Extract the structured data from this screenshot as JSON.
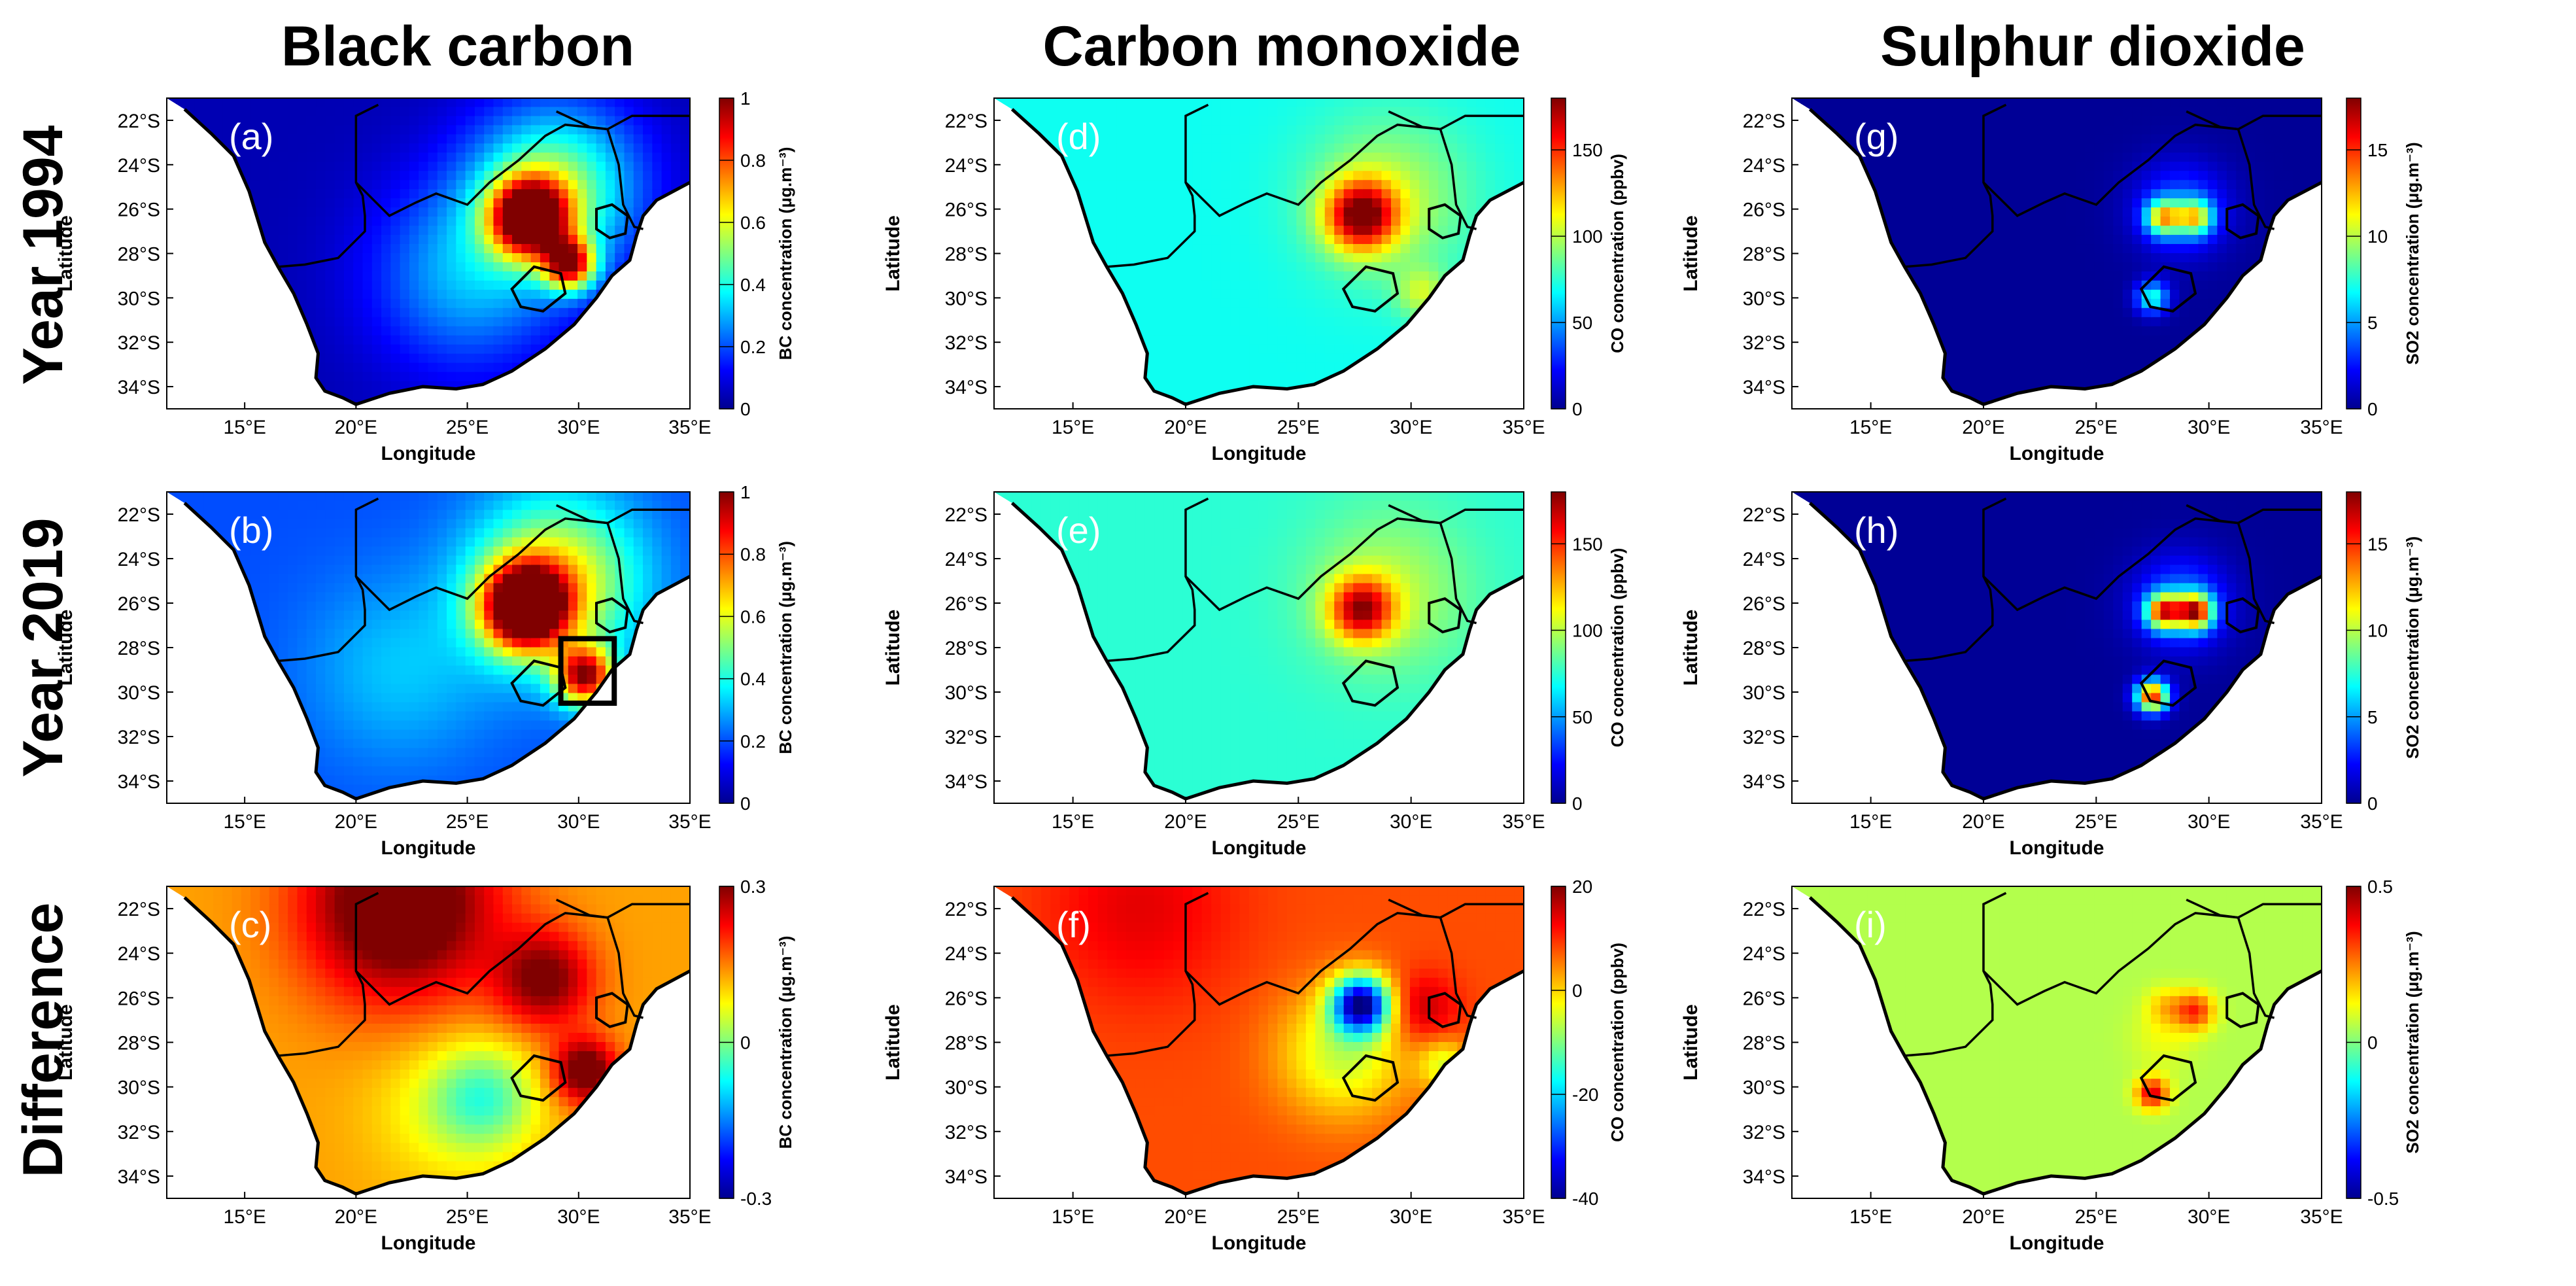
{
  "figure": {
    "column_titles": [
      "Black carbon",
      "Carbon monoxide",
      "Sulphur dioxide"
    ],
    "row_titles": [
      "Year 1994",
      "Year 2019",
      "Difference"
    ]
  },
  "chart_data": [
    {
      "type": "heatmap",
      "panel": "(a)",
      "pollutant": "BC",
      "row": "Year 1994",
      "xlabel": "Longitude",
      "ylabel": "Latitude",
      "x_ticks": [
        "15°E",
        "20°E",
        "25°E",
        "30°E",
        "35°E"
      ],
      "y_ticks": [
        "22°S",
        "24°S",
        "26°S",
        "28°S",
        "30°S",
        "32°S",
        "34°S"
      ],
      "xlim": [
        11.5,
        35
      ],
      "ylim": [
        -35,
        -21
      ],
      "colorbar": {
        "label": "BC concentration (μg.m⁻³)",
        "ticks": [
          "0",
          "0.2",
          "0.4",
          "0.6",
          "0.8",
          "1"
        ],
        "range": [
          0,
          1
        ],
        "scale": "jet"
      },
      "background": 0.05,
      "hotspots": [
        {
          "lon": 27.8,
          "lat": -26.4,
          "value": 0.9,
          "sigma": 1.2
        },
        {
          "lon": 29.6,
          "lat": -28.5,
          "value": 0.75,
          "sigma": 0.8
        },
        {
          "lon": 29,
          "lat": -25,
          "value": 0.45,
          "sigma": 2.6
        },
        {
          "lon": 25,
          "lat": -29,
          "value": 0.25,
          "sigma": 3
        }
      ]
    },
    {
      "type": "heatmap",
      "panel": "(b)",
      "pollutant": "BC",
      "row": "Year 2019",
      "xlabel": "Longitude",
      "ylabel": "Latitude",
      "x_ticks": [
        "15°E",
        "20°E",
        "25°E",
        "30°E",
        "35°E"
      ],
      "y_ticks": [
        "22°S",
        "24°S",
        "26°S",
        "28°S",
        "30°S",
        "32°S",
        "34°S"
      ],
      "xlim": [
        11.5,
        35
      ],
      "ylim": [
        -35,
        -21
      ],
      "colorbar": {
        "label": "BC concentration (μg.m⁻³)",
        "ticks": [
          "0",
          "0.2",
          "0.4",
          "0.6",
          "0.8",
          "1"
        ],
        "range": [
          0,
          1
        ],
        "scale": "jet"
      },
      "background": 0.2,
      "hotspots": [
        {
          "lon": 27.6,
          "lat": -26.2,
          "value": 0.95,
          "sigma": 1.3
        },
        {
          "lon": 30.3,
          "lat": -29.3,
          "value": 0.72,
          "sigma": 0.9
        },
        {
          "lon": 29,
          "lat": -25,
          "value": 0.45,
          "sigma": 2.6
        },
        {
          "lon": 22,
          "lat": -29,
          "value": 0.12,
          "sigma": 3
        }
      ]
    },
    {
      "type": "heatmap",
      "panel": "(c)",
      "pollutant": "BC",
      "row": "Difference",
      "xlabel": "Longitude",
      "ylabel": "Latitude",
      "x_ticks": [
        "15°E",
        "20°E",
        "25°E",
        "30°E",
        "35°E"
      ],
      "y_ticks": [
        "22°S",
        "24°S",
        "26°S",
        "28°S",
        "30°S",
        "32°S",
        "34°S"
      ],
      "xlim": [
        11.5,
        35
      ],
      "ylim": [
        -35,
        -21
      ],
      "colorbar": {
        "label": "BC concentration (μg.m⁻³)",
        "ticks": [
          "0.3",
          "0",
          "-0.3"
        ],
        "range": [
          -0.3,
          0.3
        ],
        "scale": "jet"
      },
      "background": 0.13,
      "hotspots": [
        {
          "lon": 22,
          "lat": -21.8,
          "value": 0.25,
          "sigma": 3
        },
        {
          "lon": 30.3,
          "lat": -29.3,
          "value": 0.22,
          "sigma": 1
        },
        {
          "lon": 28.5,
          "lat": -25.2,
          "value": 0.18,
          "sigma": 1.5
        },
        {
          "lon": 25.8,
          "lat": -30.5,
          "value": -0.14,
          "sigma": 1.6
        },
        {
          "lon": 24,
          "lat": -31,
          "value": -0.06,
          "sigma": 2.4
        }
      ]
    },
    {
      "type": "heatmap",
      "panel": "(d)",
      "pollutant": "CO",
      "row": "Year 1994",
      "xlabel": "Longitude",
      "ylabel": "Latitude",
      "x_ticks": [
        "15°E",
        "20°E",
        "25°E",
        "30°E",
        "35°E"
      ],
      "y_ticks": [
        "22°S",
        "24°S",
        "26°S",
        "28°S",
        "30°S",
        "32°S",
        "34°S"
      ],
      "xlim": [
        11.5,
        35
      ],
      "ylim": [
        -35,
        -21
      ],
      "colorbar": {
        "label": "CO concentration (ppbv)",
        "ticks": [
          "0",
          "50",
          "100",
          "150"
        ],
        "range": [
          0,
          180
        ],
        "scale": "jet"
      },
      "background": 70,
      "hotspots": [
        {
          "lon": 27.8,
          "lat": -26.3,
          "value": 100,
          "sigma": 1.1
        },
        {
          "lon": 29,
          "lat": -25.5,
          "value": 30,
          "sigma": 2.5
        },
        {
          "lon": 30.5,
          "lat": -29.8,
          "value": 30,
          "sigma": 0.8
        }
      ]
    },
    {
      "type": "heatmap",
      "panel": "(e)",
      "pollutant": "CO",
      "row": "Year 2019",
      "xlabel": "Longitude",
      "ylabel": "Latitude",
      "x_ticks": [
        "15°E",
        "20°E",
        "25°E",
        "30°E",
        "35°E"
      ],
      "y_ticks": [
        "22°S",
        "24°S",
        "26°S",
        "28°S",
        "30°S",
        "32°S",
        "34°S"
      ],
      "xlim": [
        11.5,
        35
      ],
      "ylim": [
        -35,
        -21
      ],
      "colorbar": {
        "label": "CO concentration (ppbv)",
        "ticks": [
          "0",
          "50",
          "100",
          "150"
        ],
        "range": [
          0,
          180
        ],
        "scale": "jet"
      },
      "background": 75,
      "hotspots": [
        {
          "lon": 27.8,
          "lat": -26.3,
          "value": 85,
          "sigma": 1
        },
        {
          "lon": 29,
          "lat": -25.5,
          "value": 25,
          "sigma": 2.5
        }
      ]
    },
    {
      "type": "heatmap",
      "panel": "(f)",
      "pollutant": "CO",
      "row": "Difference",
      "xlabel": "Longitude",
      "ylabel": "Latitude",
      "x_ticks": [
        "15°E",
        "20°E",
        "25°E",
        "30°E",
        "35°E"
      ],
      "y_ticks": [
        "22°S",
        "24°S",
        "26°S",
        "28°S",
        "30°S",
        "32°S",
        "34°S"
      ],
      "xlim": [
        11.5,
        35
      ],
      "ylim": [
        -35,
        -21
      ],
      "colorbar": {
        "label": "CO concentration (ppbv)",
        "ticks": [
          "20",
          "0",
          "-20",
          "-40"
        ],
        "range": [
          -40,
          20
        ],
        "scale": "jet"
      },
      "background": 8,
      "hotspots": [
        {
          "lon": 18,
          "lat": -22,
          "value": 6,
          "sigma": 3
        },
        {
          "lon": 27.8,
          "lat": -26.3,
          "value": -44,
          "sigma": 0.9
        },
        {
          "lon": 27,
          "lat": -28.5,
          "value": -14,
          "sigma": 2
        },
        {
          "lon": 30.5,
          "lat": -26.5,
          "value": 9,
          "sigma": 1.1
        },
        {
          "lon": 31.5,
          "lat": -29,
          "value": -12,
          "sigma": 0.8
        }
      ]
    },
    {
      "type": "heatmap",
      "panel": "(g)",
      "pollutant": "SO2",
      "row": "Year 1994",
      "xlabel": "Longitude",
      "ylabel": "Latitude",
      "x_ticks": [
        "15°E",
        "20°E",
        "25°E",
        "30°E",
        "35°E"
      ],
      "y_ticks": [
        "22°S",
        "24°S",
        "26°S",
        "28°S",
        "30°S",
        "32°S",
        "34°S"
      ],
      "xlim": [
        11.5,
        35
      ],
      "ylim": [
        -35,
        -21
      ],
      "colorbar": {
        "label": "SO2 concentration (μg.m⁻³)",
        "ticks": [
          "0",
          "5",
          "10",
          "15"
        ],
        "range": [
          0,
          18
        ],
        "scale": "jet"
      },
      "background": 0.4,
      "hotspots": [
        {
          "lon": 28,
          "lat": -26.4,
          "value": 10,
          "sigma": 0.55
        },
        {
          "lon": 29.4,
          "lat": -26.4,
          "value": 9,
          "sigma": 0.55
        },
        {
          "lon": 28.8,
          "lat": -26,
          "value": 3.5,
          "sigma": 1.4
        },
        {
          "lon": 27.5,
          "lat": -30,
          "value": 7,
          "sigma": 0.5
        }
      ]
    },
    {
      "type": "heatmap",
      "panel": "(h)",
      "pollutant": "SO2",
      "row": "Year 2019",
      "xlabel": "Longitude",
      "ylabel": "Latitude",
      "x_ticks": [
        "15°E",
        "20°E",
        "25°E",
        "30°E",
        "35°E"
      ],
      "y_ticks": [
        "22°S",
        "24°S",
        "26°S",
        "28°S",
        "30°S",
        "32°S",
        "34°S"
      ],
      "xlim": [
        11.5,
        35
      ],
      "ylim": [
        -35,
        -21
      ],
      "colorbar": {
        "label": "SO2 concentration (μg.m⁻³)",
        "ticks": [
          "0",
          "5",
          "10",
          "15"
        ],
        "range": [
          0,
          18
        ],
        "scale": "jet"
      },
      "background": 0.4,
      "hotspots": [
        {
          "lon": 28,
          "lat": -26.4,
          "value": 13,
          "sigma": 0.55
        },
        {
          "lon": 29.4,
          "lat": -26.4,
          "value": 14,
          "sigma": 0.55
        },
        {
          "lon": 28.8,
          "lat": -26,
          "value": 4,
          "sigma": 1.4
        },
        {
          "lon": 27.5,
          "lat": -30.2,
          "value": 15,
          "sigma": 0.5
        }
      ]
    },
    {
      "type": "heatmap",
      "panel": "(i)",
      "pollutant": "SO2",
      "row": "Difference",
      "xlabel": "Longitude",
      "ylabel": "Latitude",
      "x_ticks": [
        "15°E",
        "20°E",
        "25°E",
        "30°E",
        "35°E"
      ],
      "y_ticks": [
        "22°S",
        "24°S",
        "26°S",
        "28°S",
        "30°S",
        "32°S",
        "34°S"
      ],
      "xlim": [
        11.5,
        35
      ],
      "ylim": [
        -35,
        -21
      ],
      "colorbar": {
        "label": "SO2 concentration (μg.m⁻³)",
        "ticks": [
          "0.5",
          "0",
          "-0.5"
        ],
        "range": [
          -0.5,
          0.5
        ],
        "scale": "jet"
      },
      "background": 0.05,
      "hotspots": [
        {
          "lon": 29.4,
          "lat": -26.6,
          "value": 0.28,
          "sigma": 0.6
        },
        {
          "lon": 28.1,
          "lat": -26.4,
          "value": 0.12,
          "sigma": 0.6
        },
        {
          "lon": 27.5,
          "lat": -30.3,
          "value": 0.35,
          "sigma": 0.5
        },
        {
          "lon": 28,
          "lat": -27.8,
          "value": 0.06,
          "sigma": 1
        }
      ]
    }
  ]
}
